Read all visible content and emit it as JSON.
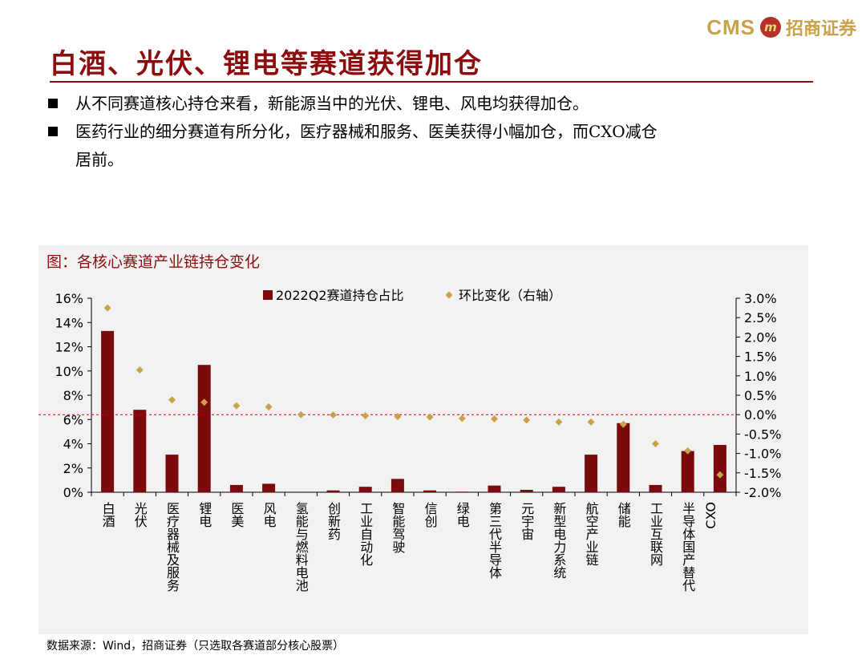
{
  "header": {
    "logo_text": "CMS",
    "logo_mark": "m",
    "logo_cn": "招商证券",
    "title": "白酒、光伏、锂电等赛道获得加仓"
  },
  "bullets": [
    "从不同赛道核心持仓来看，新能源当中的光伏、锂电、风电均获得加仓。",
    "医药行业的细分赛道有所分化，医疗器械和服务、医美获得小幅加仓，而CXO减仓",
    "居前。"
  ],
  "chart_title": "图：各核心赛道产业链持仓变化",
  "source": "数据来源：Wind，招商证券（只选取各赛道部分核心股票）",
  "colors": {
    "bar": "#7b0a0a",
    "diamond": "#c9a24c",
    "zero_line": "#cc0000",
    "title": "#8b0d0d"
  },
  "chart_data": {
    "type": "bar",
    "categories": [
      "白酒",
      "光伏",
      "医疗器械及服务",
      "锂电",
      "医美",
      "风电",
      "氢能与燃料电池",
      "创新药",
      "工业自动化",
      "智能驾驶",
      "信创",
      "绿电",
      "第三代半导体",
      "元宇宙",
      "新型电力系统",
      "航空产业链",
      "储能",
      "工业互联网",
      "半导体国产替代",
      "CXO"
    ],
    "series": [
      {
        "name": "2022Q2赛道持仓占比",
        "axis": "left",
        "type": "bar",
        "values": [
          13.3,
          6.8,
          3.1,
          10.5,
          0.6,
          0.7,
          0.0,
          0.15,
          0.45,
          1.1,
          0.15,
          0.05,
          0.55,
          0.2,
          0.45,
          3.1,
          5.7,
          0.6,
          3.4,
          3.9
        ]
      },
      {
        "name": "环比变化（右轴）",
        "axis": "right",
        "type": "scatter",
        "values": [
          2.75,
          1.15,
          0.38,
          0.32,
          0.23,
          0.2,
          0.0,
          -0.01,
          -0.03,
          -0.05,
          -0.06,
          -0.1,
          -0.11,
          -0.14,
          -0.19,
          -0.19,
          -0.25,
          -0.75,
          -0.93,
          -1.55
        ]
      }
    ],
    "y_left": {
      "min": 0,
      "max": 16,
      "ticks": [
        "0%",
        "2%",
        "4%",
        "6%",
        "8%",
        "10%",
        "12%",
        "14%",
        "16%"
      ]
    },
    "y_right": {
      "min": -2.0,
      "max": 3.0,
      "ticks": [
        "-2.0%",
        "-1.5%",
        "-1.0%",
        "-0.5%",
        "0.0%",
        "0.5%",
        "1.0%",
        "1.5%",
        "2.0%",
        "2.5%",
        "3.0%"
      ]
    },
    "legend_position": "top-center",
    "grid": false
  }
}
